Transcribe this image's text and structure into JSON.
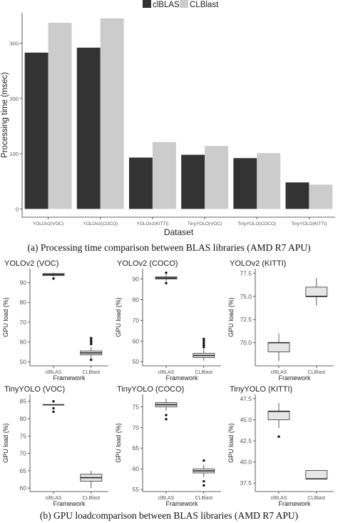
{
  "captions": {
    "a": "(a)  Processing time comparison between BLAS libraries (AMD R7 APU)",
    "b": "(b)  GPU loadcomparison between BLAS libraries (AMD R7 APU)"
  },
  "colors": {
    "clblas": "#333333",
    "clblast": "#cccccc",
    "box_fill": "#e6e6e6",
    "panel_bg": "#ffffff",
    "grid": "#ebebeb",
    "axis": "#333333"
  },
  "chart_data": [
    {
      "type": "bar",
      "title": "",
      "xlabel": "Dataset",
      "ylabel": "Processing time (msec)",
      "ylim": [
        -15,
        355
      ],
      "yticks": [
        0,
        100,
        200,
        300
      ],
      "grid": false,
      "legend": {
        "placement": "top-center",
        "entries": [
          "clBLAS",
          "CLBlast"
        ]
      },
      "categories": [
        "YOLOv2(VOC)",
        "YOLOv2(COCO)",
        "YOLOv2(KITTI)",
        "TinyYOLO(VOC)",
        "TinyYOLO(COCO)",
        "TinyYOLO(KITTI)"
      ],
      "series": [
        {
          "name": "clBLAS",
          "values": [
            283,
            292,
            93,
            98,
            92,
            48
          ]
        },
        {
          "name": "CLBlast",
          "values": [
            337,
            345,
            121,
            114,
            101,
            44
          ]
        }
      ]
    },
    {
      "type": "box",
      "title": "YOLOv2 (VOC)",
      "xlabel": "Framework",
      "ylabel": "GPU load (%)",
      "categories": [
        "clBLAS",
        "CLBlast"
      ],
      "ylim": [
        48,
        97
      ],
      "yticks": [
        50,
        60,
        70,
        80,
        90
      ],
      "boxes": [
        {
          "whisker_low": 93,
          "q1": 93.5,
          "median": 94,
          "q3": 94.5,
          "whisker_high": 95,
          "outliers": [
            92
          ]
        },
        {
          "whisker_low": 51,
          "q1": 53.5,
          "median": 54.5,
          "q3": 55.5,
          "whisker_high": 57.5,
          "outliers": [
            59,
            60,
            61,
            62,
            51
          ]
        }
      ]
    },
    {
      "type": "box",
      "title": "YOLOv2 (COCO)",
      "xlabel": "Framework",
      "ylabel": "GPU load (%)",
      "categories": [
        "clBLAS",
        "CLBlast"
      ],
      "ylim": [
        48,
        95
      ],
      "yticks": [
        50,
        60,
        70,
        80,
        90
      ],
      "boxes": [
        {
          "whisker_low": 89,
          "q1": 90,
          "median": 90.5,
          "q3": 91,
          "whisker_high": 92,
          "outliers": [
            88,
            93
          ]
        },
        {
          "whisker_low": 50.5,
          "q1": 52,
          "median": 53,
          "q3": 54,
          "whisker_high": 56,
          "outliers": [
            57,
            58,
            59,
            60,
            61
          ]
        }
      ]
    },
    {
      "type": "box",
      "title": "YOLOv2 (KITTI)",
      "xlabel": "Framework",
      "ylabel": "GPU load (%)",
      "categories": [
        "clBLAS",
        "CLBlast"
      ],
      "ylim": [
        67.5,
        78
      ],
      "yticks": [
        70.0,
        72.5,
        75.0,
        77.5
      ],
      "boxes": [
        {
          "whisker_low": 68,
          "q1": 69,
          "median": 70,
          "q3": 70,
          "whisker_high": 71,
          "outliers": []
        },
        {
          "whisker_low": 74,
          "q1": 75,
          "median": 75,
          "q3": 76,
          "whisker_high": 77,
          "outliers": []
        }
      ]
    },
    {
      "type": "box",
      "title": "TinyYOLO (VOC)",
      "xlabel": "Framework",
      "ylabel": "GPU load (%)",
      "categories": [
        "clBLAS",
        "CLBlast"
      ],
      "ylim": [
        59,
        87
      ],
      "yticks": [
        60,
        65,
        70,
        75,
        80,
        85
      ],
      "boxes": [
        {
          "whisker_low": 84,
          "q1": 84,
          "median": 84,
          "q3": 84,
          "whisker_high": 84,
          "outliers": [
            82,
            83,
            85
          ]
        },
        {
          "whisker_low": 60,
          "q1": 62,
          "median": 63,
          "q3": 64,
          "whisker_high": 65,
          "outliers": []
        }
      ]
    },
    {
      "type": "box",
      "title": "TinyYOLO (COCO)",
      "xlabel": "Framework",
      "ylabel": "GPU load (%)",
      "categories": [
        "clBLAS",
        "CLBlast"
      ],
      "ylim": [
        54.5,
        78
      ],
      "yticks": [
        55,
        60,
        65,
        70,
        75
      ],
      "boxes": [
        {
          "whisker_low": 74,
          "q1": 75,
          "median": 75.5,
          "q3": 76,
          "whisker_high": 77,
          "outliers": [
            72,
            73
          ]
        },
        {
          "whisker_low": 58,
          "q1": 59,
          "median": 59.5,
          "q3": 60,
          "whisker_high": 61,
          "outliers": [
            62,
            57,
            56
          ]
        }
      ]
    },
    {
      "type": "box",
      "title": "TinyYOLO (KITTI)",
      "xlabel": "Framework",
      "ylabel": "GPU load (%)",
      "categories": [
        "clBLAS",
        "CLBlast"
      ],
      "ylim": [
        36.5,
        48
      ],
      "yticks": [
        37.5,
        40.0,
        42.5,
        45.0,
        47.5
      ],
      "boxes": [
        {
          "whisker_low": 44,
          "q1": 45,
          "median": 46,
          "q3": 46,
          "whisker_high": 47,
          "outliers": [
            43
          ]
        },
        {
          "whisker_low": 38,
          "q1": 38,
          "median": 38,
          "q3": 39,
          "whisker_high": 39,
          "outliers": []
        }
      ]
    }
  ]
}
